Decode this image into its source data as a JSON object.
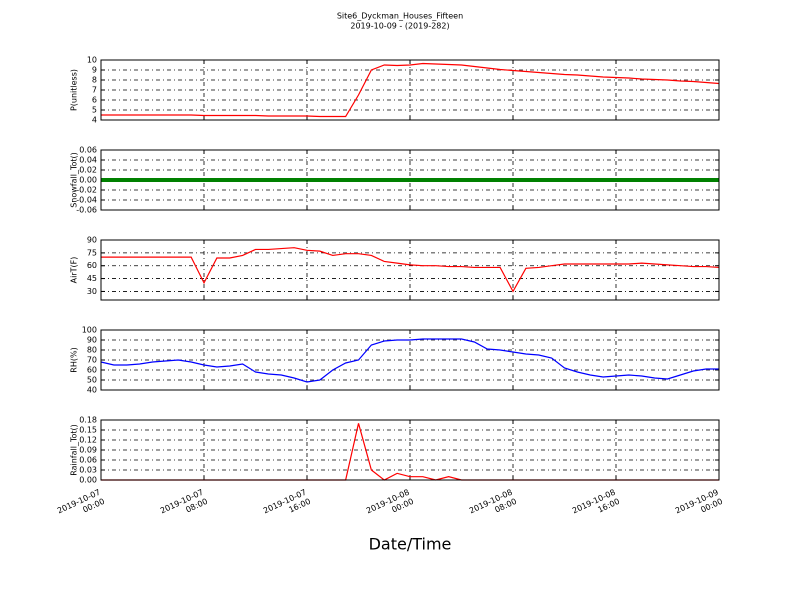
{
  "title": "Site6_Dyckman_Houses_Fifteen",
  "subtitle": "2019-10-09 - (2019-282)",
  "xlabel": "Date/Time",
  "chart_data": [
    {
      "type": "line",
      "ylabel": "P(unitless)",
      "color": "#ff0000",
      "ylim": [
        4,
        10
      ],
      "yticks": [
        4,
        5,
        6,
        7,
        8,
        9,
        10
      ],
      "grid": true,
      "xlim": [
        "2019-10-07 00:00",
        "2019-10-09 00:00"
      ],
      "xticks": [
        "2019-10-07 00:00",
        "2019-10-07 08:00",
        "2019-10-07 16:00",
        "2019-10-08 00:00",
        "2019-10-08 08:00",
        "2019-10-08 16:00",
        "2019-10-09 00:00"
      ],
      "x": [
        "2019-10-07 00:00",
        "2019-10-07 01:00",
        "2019-10-07 02:00",
        "2019-10-07 03:00",
        "2019-10-07 04:00",
        "2019-10-07 05:00",
        "2019-10-07 06:00",
        "2019-10-07 07:00",
        "2019-10-07 08:00",
        "2019-10-07 09:00",
        "2019-10-07 10:00",
        "2019-10-07 11:00",
        "2019-10-07 12:00",
        "2019-10-07 13:00",
        "2019-10-07 14:00",
        "2019-10-07 15:00",
        "2019-10-07 16:00",
        "2019-10-07 17:00",
        "2019-10-07 18:00",
        "2019-10-07 19:00",
        "2019-10-07 20:00",
        "2019-10-07 21:00",
        "2019-10-07 22:00",
        "2019-10-07 23:00",
        "2019-10-08 00:00",
        "2019-10-08 01:00",
        "2019-10-08 02:00",
        "2019-10-08 03:00",
        "2019-10-08 04:00",
        "2019-10-08 05:00",
        "2019-10-08 06:00",
        "2019-10-08 07:00",
        "2019-10-08 08:00",
        "2019-10-08 09:00",
        "2019-10-08 10:00",
        "2019-10-08 11:00",
        "2019-10-08 12:00",
        "2019-10-08 13:00",
        "2019-10-08 14:00",
        "2019-10-08 15:00",
        "2019-10-08 16:00",
        "2019-10-08 17:00",
        "2019-10-08 18:00",
        "2019-10-08 19:00",
        "2019-10-08 20:00",
        "2019-10-08 21:00",
        "2019-10-08 22:00",
        "2019-10-08 23:00",
        "2019-10-09 00:00"
      ],
      "values": [
        4.5,
        4.5,
        4.5,
        4.5,
        4.5,
        4.5,
        4.5,
        4.5,
        4.45,
        4.45,
        4.45,
        4.45,
        4.45,
        4.4,
        4.4,
        4.4,
        4.4,
        4.35,
        4.35,
        4.35,
        6.5,
        9.0,
        9.5,
        9.45,
        9.5,
        9.65,
        9.6,
        9.55,
        9.5,
        9.35,
        9.2,
        9.05,
        8.95,
        8.85,
        8.75,
        8.65,
        8.55,
        8.5,
        8.4,
        8.3,
        8.25,
        8.2,
        8.1,
        8.05,
        8.0,
        7.9,
        7.85,
        7.75,
        7.65
      ]
    },
    {
      "type": "line",
      "ylabel": "Snowfall_Tot()",
      "color": "#008000",
      "ylim": [
        -0.06,
        0.06
      ],
      "yticks": [
        -0.06,
        -0.04,
        -0.02,
        {
          "value": 0,
          "label": "0.00"
        },
        0.02,
        0.04,
        0.06
      ],
      "grid": true,
      "xlim": [
        "2019-10-07 00:00",
        "2019-10-09 00:00"
      ],
      "xticks": [
        "2019-10-07 00:00",
        "2019-10-07 08:00",
        "2019-10-07 16:00",
        "2019-10-08 00:00",
        "2019-10-08 08:00",
        "2019-10-08 16:00",
        "2019-10-09 00:00"
      ],
      "x": [
        "2019-10-07 00:00",
        "2019-10-07 01:00",
        "2019-10-07 02:00",
        "2019-10-07 03:00",
        "2019-10-07 04:00",
        "2019-10-07 05:00",
        "2019-10-07 06:00",
        "2019-10-07 07:00",
        "2019-10-07 08:00",
        "2019-10-07 09:00",
        "2019-10-07 10:00",
        "2019-10-07 11:00",
        "2019-10-07 12:00",
        "2019-10-07 13:00",
        "2019-10-07 14:00",
        "2019-10-07 15:00",
        "2019-10-07 16:00",
        "2019-10-07 17:00",
        "2019-10-07 18:00",
        "2019-10-07 19:00",
        "2019-10-07 20:00",
        "2019-10-07 21:00",
        "2019-10-07 22:00",
        "2019-10-07 23:00",
        "2019-10-08 00:00",
        "2019-10-08 01:00",
        "2019-10-08 02:00",
        "2019-10-08 03:00",
        "2019-10-08 04:00",
        "2019-10-08 05:00",
        "2019-10-08 06:00",
        "2019-10-08 07:00",
        "2019-10-08 08:00",
        "2019-10-08 09:00",
        "2019-10-08 10:00",
        "2019-10-08 11:00",
        "2019-10-08 12:00",
        "2019-10-08 13:00",
        "2019-10-08 14:00",
        "2019-10-08 15:00",
        "2019-10-08 16:00",
        "2019-10-08 17:00",
        "2019-10-08 18:00",
        "2019-10-08 19:00",
        "2019-10-08 20:00",
        "2019-10-08 21:00",
        "2019-10-08 22:00",
        "2019-10-08 23:00",
        "2019-10-09 00:00"
      ],
      "values": [
        0,
        0,
        0,
        0,
        0,
        0,
        0,
        0,
        0,
        0,
        0,
        0,
        0,
        0,
        0,
        0,
        0,
        0,
        0,
        0,
        0,
        0,
        0,
        0,
        0,
        0,
        0,
        0,
        0,
        0,
        0,
        0,
        0,
        0,
        0,
        0,
        0,
        0,
        0,
        0,
        0,
        0,
        0,
        0,
        0,
        0,
        0,
        0,
        0
      ]
    },
    {
      "type": "line",
      "ylabel": "AirT(F)",
      "color": "#ff0000",
      "ylim": [
        20,
        90
      ],
      "yticks": [
        30,
        45,
        60,
        75,
        90
      ],
      "grid": true,
      "xlim": [
        "2019-10-07 00:00",
        "2019-10-09 00:00"
      ],
      "xticks": [
        "2019-10-07 00:00",
        "2019-10-07 08:00",
        "2019-10-07 16:00",
        "2019-10-08 00:00",
        "2019-10-08 08:00",
        "2019-10-08 16:00",
        "2019-10-09 00:00"
      ],
      "x": [
        "2019-10-07 00:00",
        "2019-10-07 01:00",
        "2019-10-07 02:00",
        "2019-10-07 03:00",
        "2019-10-07 04:00",
        "2019-10-07 05:00",
        "2019-10-07 06:00",
        "2019-10-07 07:00",
        "2019-10-07 08:00",
        "2019-10-07 09:00",
        "2019-10-07 10:00",
        "2019-10-07 11:00",
        "2019-10-07 12:00",
        "2019-10-07 13:00",
        "2019-10-07 14:00",
        "2019-10-07 15:00",
        "2019-10-07 16:00",
        "2019-10-07 17:00",
        "2019-10-07 18:00",
        "2019-10-07 19:00",
        "2019-10-07 20:00",
        "2019-10-07 21:00",
        "2019-10-07 22:00",
        "2019-10-07 23:00",
        "2019-10-08 00:00",
        "2019-10-08 01:00",
        "2019-10-08 02:00",
        "2019-10-08 03:00",
        "2019-10-08 04:00",
        "2019-10-08 05:00",
        "2019-10-08 06:00",
        "2019-10-08 07:00",
        "2019-10-08 08:00",
        "2019-10-08 09:00",
        "2019-10-08 10:00",
        "2019-10-08 11:00",
        "2019-10-08 12:00",
        "2019-10-08 13:00",
        "2019-10-08 14:00",
        "2019-10-08 15:00",
        "2019-10-08 16:00",
        "2019-10-08 17:00",
        "2019-10-08 18:00",
        "2019-10-08 19:00",
        "2019-10-08 20:00",
        "2019-10-08 21:00",
        "2019-10-08 22:00",
        "2019-10-08 23:00",
        "2019-10-09 00:00"
      ],
      "values": [
        70,
        70,
        70,
        70,
        70,
        70,
        70,
        70,
        40,
        69,
        69,
        72,
        79,
        79,
        80,
        81,
        78,
        77,
        72,
        74,
        74,
        72,
        65,
        63,
        61,
        60,
        60,
        59,
        59,
        58,
        58,
        58,
        30,
        57,
        58,
        60,
        62,
        62,
        62,
        62,
        62,
        62,
        63,
        62,
        61,
        60,
        59,
        59,
        58
      ]
    },
    {
      "type": "line",
      "ylabel": "RH(%)",
      "color": "#0000ff",
      "ylim": [
        40,
        100
      ],
      "yticks": [
        40,
        50,
        60,
        70,
        80,
        90,
        100
      ],
      "grid": true,
      "xlim": [
        "2019-10-07 00:00",
        "2019-10-09 00:00"
      ],
      "xticks": [
        "2019-10-07 00:00",
        "2019-10-07 08:00",
        "2019-10-07 16:00",
        "2019-10-08 00:00",
        "2019-10-08 08:00",
        "2019-10-08 16:00",
        "2019-10-09 00:00"
      ],
      "x": [
        "2019-10-07 00:00",
        "2019-10-07 01:00",
        "2019-10-07 02:00",
        "2019-10-07 03:00",
        "2019-10-07 04:00",
        "2019-10-07 05:00",
        "2019-10-07 06:00",
        "2019-10-07 07:00",
        "2019-10-07 08:00",
        "2019-10-07 09:00",
        "2019-10-07 10:00",
        "2019-10-07 11:00",
        "2019-10-07 12:00",
        "2019-10-07 13:00",
        "2019-10-07 14:00",
        "2019-10-07 15:00",
        "2019-10-07 16:00",
        "2019-10-07 17:00",
        "2019-10-07 18:00",
        "2019-10-07 19:00",
        "2019-10-07 20:00",
        "2019-10-07 21:00",
        "2019-10-07 22:00",
        "2019-10-07 23:00",
        "2019-10-08 00:00",
        "2019-10-08 01:00",
        "2019-10-08 02:00",
        "2019-10-08 03:00",
        "2019-10-08 04:00",
        "2019-10-08 05:00",
        "2019-10-08 06:00",
        "2019-10-08 07:00",
        "2019-10-08 08:00",
        "2019-10-08 09:00",
        "2019-10-08 10:00",
        "2019-10-08 11:00",
        "2019-10-08 12:00",
        "2019-10-08 13:00",
        "2019-10-08 14:00",
        "2019-10-08 15:00",
        "2019-10-08 16:00",
        "2019-10-08 17:00",
        "2019-10-08 18:00",
        "2019-10-08 19:00",
        "2019-10-08 20:00",
        "2019-10-08 21:00",
        "2019-10-08 22:00",
        "2019-10-08 23:00",
        "2019-10-09 00:00"
      ],
      "values": [
        68,
        65,
        65,
        66,
        68,
        69,
        70,
        68,
        65,
        63,
        64,
        66,
        58,
        56,
        55,
        52,
        48,
        50,
        60,
        67,
        70,
        85,
        89,
        90,
        90,
        91,
        91,
        91,
        91,
        88,
        81,
        80,
        78,
        76,
        75,
        72,
        62,
        58,
        55,
        53,
        54,
        55,
        54,
        52,
        51,
        55,
        59,
        61,
        61
      ]
    },
    {
      "type": "line",
      "ylabel": "Rainfall_Tot()",
      "color": "#ff0000",
      "ylim": [
        0,
        0.18
      ],
      "yticks": [
        {
          "value": 0,
          "label": "0.00"
        },
        0.03,
        0.06,
        0.09,
        0.12,
        0.15,
        0.18
      ],
      "grid": true,
      "xlim": [
        "2019-10-07 00:00",
        "2019-10-09 00:00"
      ],
      "xticks": [
        "2019-10-07 00:00",
        "2019-10-07 08:00",
        "2019-10-07 16:00",
        "2019-10-08 00:00",
        "2019-10-08 08:00",
        "2019-10-08 16:00",
        "2019-10-09 00:00"
      ],
      "x": [
        "2019-10-07 00:00",
        "2019-10-07 01:00",
        "2019-10-07 02:00",
        "2019-10-07 03:00",
        "2019-10-07 04:00",
        "2019-10-07 05:00",
        "2019-10-07 06:00",
        "2019-10-07 07:00",
        "2019-10-07 08:00",
        "2019-10-07 09:00",
        "2019-10-07 10:00",
        "2019-10-07 11:00",
        "2019-10-07 12:00",
        "2019-10-07 13:00",
        "2019-10-07 14:00",
        "2019-10-07 15:00",
        "2019-10-07 16:00",
        "2019-10-07 17:00",
        "2019-10-07 18:00",
        "2019-10-07 19:00",
        "2019-10-07 20:00",
        "2019-10-07 21:00",
        "2019-10-07 22:00",
        "2019-10-07 23:00",
        "2019-10-08 00:00",
        "2019-10-08 01:00",
        "2019-10-08 02:00",
        "2019-10-08 03:00",
        "2019-10-08 04:00",
        "2019-10-08 05:00",
        "2019-10-08 06:00",
        "2019-10-08 07:00",
        "2019-10-08 08:00",
        "2019-10-08 09:00",
        "2019-10-08 10:00",
        "2019-10-08 11:00",
        "2019-10-08 12:00",
        "2019-10-08 13:00",
        "2019-10-08 14:00",
        "2019-10-08 15:00",
        "2019-10-08 16:00",
        "2019-10-08 17:00",
        "2019-10-08 18:00",
        "2019-10-08 19:00",
        "2019-10-08 20:00",
        "2019-10-08 21:00",
        "2019-10-08 22:00",
        "2019-10-08 23:00",
        "2019-10-09 00:00"
      ],
      "values": [
        0,
        0,
        0,
        0,
        0,
        0,
        0,
        0,
        0,
        0,
        0,
        0,
        0,
        0,
        0,
        0,
        0,
        0,
        0,
        0,
        0.17,
        0.03,
        0,
        0.02,
        0.01,
        0.01,
        0,
        0.01,
        0,
        0,
        0,
        0,
        0,
        0,
        0,
        0,
        0,
        0,
        0,
        0,
        0,
        0,
        0,
        0,
        0,
        0,
        0,
        0,
        0
      ]
    }
  ]
}
